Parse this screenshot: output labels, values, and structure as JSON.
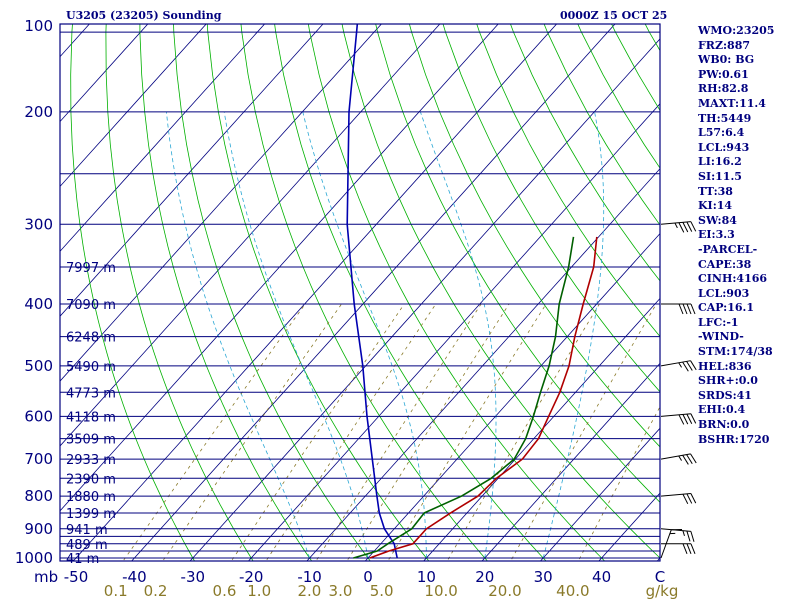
{
  "header": {
    "station_title": "U3205 (23205) Sounding",
    "time": "0000Z 15 OCT 25"
  },
  "indices": [
    "WMO:23205",
    "FRZ:887",
    "WB0: BG",
    "PW:0.61",
    "RH:82.8",
    "MAXT:11.4",
    "TH:5449",
    "L57:6.4",
    "LCL:943",
    "LI:16.2",
    "SI:11.5",
    "TT:38",
    "KI:14",
    "SW:84",
    "EI:3.3",
    "-PARCEL-",
    "CAPE:38",
    "CINH:4166",
    "LCL:903",
    "CAP:16.1",
    "LFC:-1",
    "-WIND-",
    "STM:174/38",
    "HEL:836",
    "SHR+:0.0",
    "SRDS:41",
    "EHI:0.4",
    "BRN:0.0",
    "BSHR:1720"
  ],
  "colors": {
    "isobar": "#00007f",
    "dry_adiabat": "#00b000",
    "moist_adiabat": "#2aa7d4",
    "mixing_ratio": "#8a7a2a",
    "temperature": "#b00000",
    "dewpoint": "#006000",
    "parcel": "#0000b0",
    "label": "#00007f",
    "mixing_label": "#8a7a2a"
  },
  "chart_data": {
    "type": "skew-t",
    "pressure_label_levels": [
      100,
      200,
      300,
      400,
      500,
      600,
      700,
      800,
      900,
      1000
    ],
    "pressure_label_text": [
      "100",
      "200",
      "300",
      "400",
      "500",
      "600",
      "700",
      "800",
      "900",
      "1000"
    ],
    "isobar_levels": [
      100,
      150,
      200,
      250,
      300,
      350,
      400,
      450,
      500,
      550,
      600,
      650,
      700,
      750,
      800,
      850,
      900,
      925,
      950,
      975,
      1000
    ],
    "bottom_ticks": [
      "mb",
      "-50",
      "-40",
      "-30",
      "-20",
      "-10",
      "0",
      "10",
      "20",
      "30",
      "40",
      "C"
    ],
    "bottom_tick_values": [
      -50,
      -40,
      -30,
      -20,
      -10,
      0,
      10,
      20,
      30,
      40,
      50
    ],
    "mixing_ratio_labels": [
      "0.1",
      "0.2",
      "0.6",
      "1.0",
      "2.0",
      "3.0",
      "5.0",
      "10.0",
      "20.0",
      "40.0",
      "g/kg"
    ],
    "mixing_ratio_values": [
      0.1,
      0.2,
      0.6,
      1.0,
      2.0,
      3.0,
      5.0,
      10.0,
      20.0,
      40.0
    ],
    "height_labels": [
      {
        "p": 350,
        "text": "7997 m"
      },
      {
        "p": 400,
        "text": "7090 m"
      },
      {
        "p": 450,
        "text": "6248 m"
      },
      {
        "p": 500,
        "text": "5490 m"
      },
      {
        "p": 550,
        "text": "4773 m"
      },
      {
        "p": 600,
        "text": "4118 m"
      },
      {
        "p": 650,
        "text": "3509 m"
      },
      {
        "p": 700,
        "text": "2933 m"
      },
      {
        "p": 750,
        "text": "2390 m"
      },
      {
        "p": 800,
        "text": "1880 m"
      },
      {
        "p": 850,
        "text": "1399 m"
      },
      {
        "p": 900,
        "text": "941 m"
      },
      {
        "p": 950,
        "text": "489 m"
      },
      {
        "p": 1000,
        "text": "41 m"
      }
    ],
    "temperature": [
      {
        "p": 1000,
        "t": 0.3
      },
      {
        "p": 975,
        "t": 2.5
      },
      {
        "p": 950,
        "t": 5.5
      },
      {
        "p": 900,
        "t": 5.5
      },
      {
        "p": 850,
        "t": 7.2
      },
      {
        "p": 800,
        "t": 9.3
      },
      {
        "p": 750,
        "t": 9.7
      },
      {
        "p": 700,
        "t": 11.2
      },
      {
        "p": 650,
        "t": 10.8
      },
      {
        "p": 600,
        "t": 9.1
      },
      {
        "p": 550,
        "t": 7.3
      },
      {
        "p": 500,
        "t": 4.8
      },
      {
        "p": 450,
        "t": 1.3
      },
      {
        "p": 400,
        "t": -2.3
      },
      {
        "p": 350,
        "t": -6.2
      },
      {
        "p": 314,
        "t": -10.3
      }
    ],
    "dewpoint": [
      {
        "p": 1000,
        "t": -2.5
      },
      {
        "p": 975,
        "t": 0.5
      },
      {
        "p": 950,
        "t": 1.2
      },
      {
        "p": 900,
        "t": 3.0
      },
      {
        "p": 850,
        "t": 2.7
      },
      {
        "p": 800,
        "t": 6.5
      },
      {
        "p": 750,
        "t": 8.8
      },
      {
        "p": 700,
        "t": 9.8
      },
      {
        "p": 650,
        "t": 8.6
      },
      {
        "p": 600,
        "t": 6.5
      },
      {
        "p": 550,
        "t": 4.0
      },
      {
        "p": 500,
        "t": 1.4
      },
      {
        "p": 450,
        "t": -2.0
      },
      {
        "p": 400,
        "t": -6.4
      },
      {
        "p": 350,
        "t": -10.5
      },
      {
        "p": 314,
        "t": -14.3
      }
    ],
    "parcel": [
      {
        "p": 1000,
        "t": 5.0
      },
      {
        "p": 950,
        "t": 2.3
      },
      {
        "p": 900,
        "t": -1.7
      },
      {
        "p": 850,
        "t": -5.0
      },
      {
        "p": 800,
        "t": -8.0
      },
      {
        "p": 700,
        "t": -14.5
      },
      {
        "p": 600,
        "t": -22.0
      },
      {
        "p": 500,
        "t": -30.5
      },
      {
        "p": 400,
        "t": -41.5
      },
      {
        "p": 300,
        "t": -55.0
      },
      {
        "p": 200,
        "t": -72.0
      },
      {
        "p": 150,
        "t": -83.0
      },
      {
        "p": 107,
        "t": -96.0
      }
    ],
    "wind_barbs": [
      {
        "p": 1000,
        "dir": 200,
        "spd": 15
      },
      {
        "p": 950,
        "dir": 270,
        "spd": 30
      },
      {
        "p": 900,
        "dir": 275,
        "spd": 25
      },
      {
        "p": 800,
        "dir": 265,
        "spd": 30
      },
      {
        "p": 700,
        "dir": 260,
        "spd": 35
      },
      {
        "p": 600,
        "dir": 265,
        "spd": 40
      },
      {
        "p": 500,
        "dir": 260,
        "spd": 35
      },
      {
        "p": 400,
        "dir": 270,
        "spd": 40
      },
      {
        "p": 300,
        "dir": 265,
        "spd": 45
      }
    ],
    "y_range_mb": [
      100,
      1050
    ],
    "x_range_c": [
      -50,
      50
    ]
  }
}
